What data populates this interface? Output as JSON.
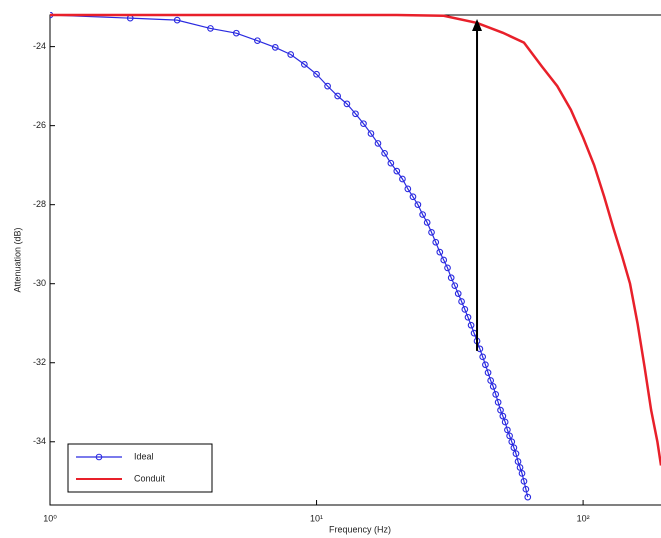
{
  "chart_data": {
    "type": "line",
    "x_label": "Frequency (Hz)",
    "y_label": "Attenuation (dB)",
    "log_x": true,
    "grid": false,
    "legend": "lower left",
    "xlim": [
      1,
      196
    ],
    "ylim": [
      -35.6,
      -23.2
    ],
    "xticks": [
      {
        "value": 1,
        "label": "10⁰"
      },
      {
        "value": 10,
        "label": "10¹"
      },
      {
        "value": 100,
        "label": "10²"
      }
    ],
    "yticks": [
      -34,
      -32,
      -30,
      -28,
      -26,
      -24
    ],
    "series": [
      {
        "name": "Ideal",
        "color": "#2a2ae0",
        "marker": "circle",
        "x": [
          1,
          2,
          3,
          4,
          5,
          6,
          7,
          8,
          9,
          10,
          11,
          12,
          13,
          14,
          15,
          16,
          17,
          18,
          19,
          20,
          21,
          22,
          23,
          24,
          25,
          26,
          27,
          28,
          29,
          30,
          31,
          32,
          33,
          34,
          35,
          36,
          37,
          38,
          39,
          40,
          41,
          42,
          43,
          44,
          45,
          46,
          47,
          48,
          49,
          50,
          51,
          52,
          53,
          54,
          55,
          56,
          57,
          58,
          59,
          60,
          61,
          62
        ],
        "values": [
          -23.2,
          -23.28,
          -23.33,
          -23.54,
          -23.66,
          -23.85,
          -24.02,
          -24.2,
          -24.45,
          -24.7,
          -25.0,
          -25.25,
          -25.45,
          -25.7,
          -25.95,
          -26.2,
          -26.45,
          -26.7,
          -26.95,
          -27.15,
          -27.35,
          -27.6,
          -27.8,
          -28.0,
          -28.25,
          -28.45,
          -28.7,
          -28.95,
          -29.2,
          -29.4,
          -29.6,
          -29.85,
          -30.05,
          -30.25,
          -30.45,
          -30.65,
          -30.85,
          -31.05,
          -31.25,
          -31.45,
          -31.65,
          -31.85,
          -32.05,
          -32.25,
          -32.45,
          -32.6,
          -32.8,
          -33.0,
          -33.2,
          -33.35,
          -33.5,
          -33.7,
          -33.85,
          -34.0,
          -34.15,
          -34.3,
          -34.5,
          -34.65,
          -34.8,
          -35.0,
          -35.2,
          -35.4
        ]
      },
      {
        "name": "Conduit",
        "color": "#e8202a",
        "x": [
          1,
          10,
          20,
          30,
          40,
          50,
          60,
          70,
          80,
          90,
          100,
          110,
          120,
          130,
          140,
          150,
          160,
          170,
          180,
          190,
          196
        ],
        "values": [
          -23.2,
          -23.2,
          -23.2,
          -23.22,
          -23.4,
          -23.65,
          -23.9,
          -24.5,
          -25.0,
          -25.6,
          -26.3,
          -27.0,
          -27.8,
          -28.6,
          -29.3,
          -30.0,
          -31.0,
          -32.1,
          -33.2,
          -34.0,
          -34.6
        ]
      }
    ],
    "arrow": {
      "x": 40,
      "y_start": -31.7,
      "y_end": -23.3
    }
  }
}
